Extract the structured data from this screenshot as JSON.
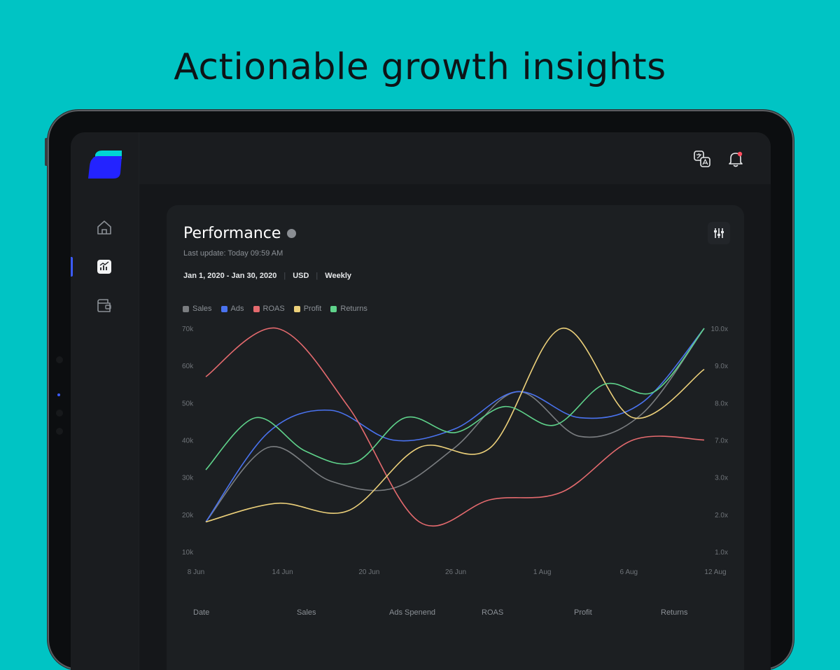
{
  "headline": "Actionable growth insights",
  "app": {
    "brand_colors": {
      "logo_top": "#00d4d4",
      "logo_main": "#2323ff",
      "accent": "#3b5bff"
    },
    "sidebar": {
      "items": [
        {
          "name": "home",
          "icon": "home-icon"
        },
        {
          "name": "analytics",
          "icon": "chart-icon",
          "active": true
        },
        {
          "name": "wallet",
          "icon": "wallet-icon"
        }
      ]
    },
    "topbar": {
      "icons": [
        "translate-icon",
        "notification-bell-icon"
      ]
    }
  },
  "performance": {
    "title": "Performance",
    "last_update": "Last update: Today 09:59 AM",
    "date_range": "Jan 1, 2020 - Jan 30, 2020",
    "currency": "USD",
    "interval": "Weekly"
  },
  "chart_data": {
    "type": "line",
    "legend": [
      {
        "name": "Sales",
        "color": "#7a7d80"
      },
      {
        "name": "Ads",
        "color": "#4a73f0"
      },
      {
        "name": "ROAS",
        "color": "#e46a6e"
      },
      {
        "name": "Profit",
        "color": "#ecd07a"
      },
      {
        "name": "Returns",
        "color": "#5fd38b"
      }
    ],
    "x_labels": [
      "8 Jun",
      "14 Jun",
      "20 Jun",
      "26 Jun",
      "1 Aug",
      "6 Aug",
      "12 Aug"
    ],
    "y_left_labels": [
      "70k",
      "60k",
      "50k",
      "40k",
      "30k",
      "20k",
      "10k"
    ],
    "y_right_labels": [
      "10.0x",
      "9.0x",
      "8.0x",
      "7.0x",
      "3.0x",
      "2.0x",
      "1.0x"
    ],
    "ylim": [
      10,
      70
    ],
    "series": [
      {
        "name": "Sales",
        "values": [
          18,
          38,
          29,
          27,
          38,
          53,
          41,
          47,
          70
        ]
      },
      {
        "name": "Ads",
        "values": [
          18,
          42,
          48,
          40,
          43,
          53,
          46,
          50,
          70
        ]
      },
      {
        "name": "ROAS",
        "values": [
          57,
          70,
          49,
          18,
          24,
          26,
          40,
          40
        ]
      },
      {
        "name": "Profit",
        "values": [
          18,
          23,
          21,
          38,
          38,
          70,
          46,
          59
        ]
      },
      {
        "name": "Returns",
        "values": [
          32,
          46,
          37,
          34,
          46,
          42,
          49,
          44,
          55,
          53,
          70
        ]
      }
    ]
  },
  "table": {
    "columns": [
      "Date",
      "Sales",
      "Ads Spenend",
      "ROAS",
      "Profit",
      "Returns"
    ]
  }
}
